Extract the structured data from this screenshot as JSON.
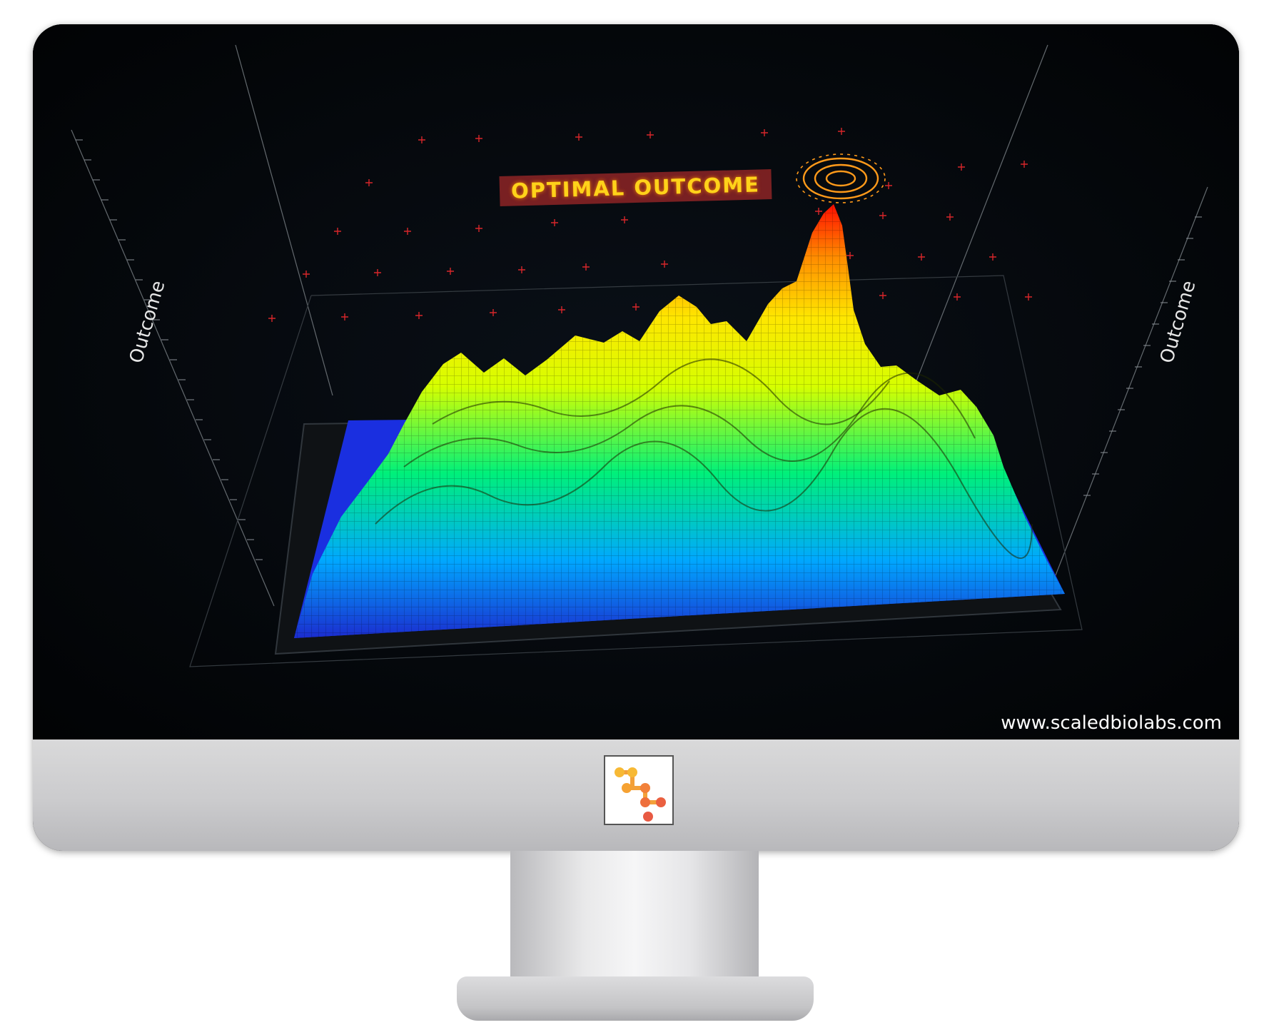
{
  "screen": {
    "highlight_label": "OPTIMAL OUTCOME",
    "axis_left_label": "Outcome",
    "axis_right_label": "Outcome",
    "website": "www.scaledbiolabs.com"
  },
  "colors": {
    "low": "#1a2fff",
    "mid": "#00ff8a",
    "high": "#fff000",
    "peak": "#ff1a00",
    "label_text": "#ffd21a",
    "label_bg": "#a02828"
  },
  "icons": {
    "target": "target-ring-icon",
    "brand": "scaledbiolabs-logo-icon"
  }
}
